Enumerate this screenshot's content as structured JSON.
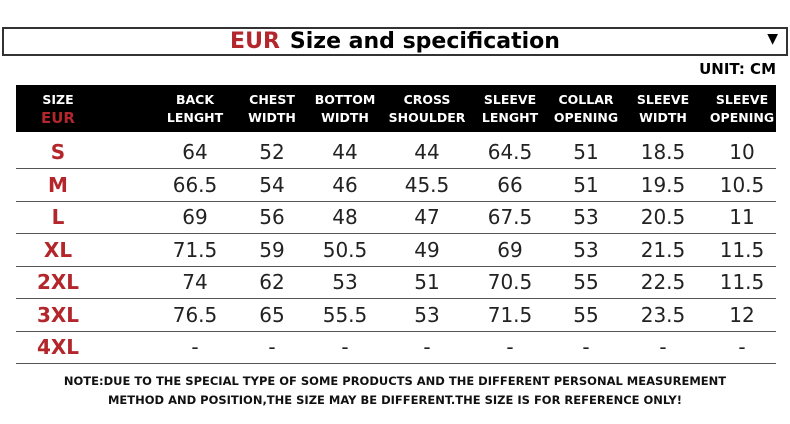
{
  "title": {
    "prefix": "EUR",
    "text": "Size and specification",
    "dropdown_icon": "triangle-down-icon"
  },
  "unit": "UNIT: CM",
  "accent_color": "#b3262b",
  "headers": [
    [
      "SIZE",
      "EUR"
    ],
    [
      "BACK",
      "LENGHT"
    ],
    [
      "CHEST",
      "WIDTH"
    ],
    [
      "BOTTOM",
      "WIDTH"
    ],
    [
      "CROSS",
      "SHOULDER"
    ],
    [
      "SLEEVE",
      "LENGHT"
    ],
    [
      "COLLAR",
      "OPENING"
    ],
    [
      "SLEEVE",
      "WIDTH"
    ],
    [
      "SLEEVE",
      "OPENING"
    ]
  ],
  "rows": [
    [
      "S",
      "64",
      "52",
      "44",
      "44",
      "64.5",
      "51",
      "18.5",
      "10"
    ],
    [
      "M",
      "66.5",
      "54",
      "46",
      "45.5",
      "66",
      "51",
      "19.5",
      "10.5"
    ],
    [
      "L",
      "69",
      "56",
      "48",
      "47",
      "67.5",
      "53",
      "20.5",
      "11"
    ],
    [
      "XL",
      "71.5",
      "59",
      "50.5",
      "49",
      "69",
      "53",
      "21.5",
      "11.5"
    ],
    [
      "2XL",
      "74",
      "62",
      "53",
      "51",
      "70.5",
      "55",
      "22.5",
      "11.5"
    ],
    [
      "3XL",
      "76.5",
      "65",
      "55.5",
      "53",
      "71.5",
      "55",
      "23.5",
      "12"
    ],
    [
      "4XL",
      "-",
      "-",
      "-",
      "-",
      "-",
      "-",
      "-",
      "-"
    ]
  ],
  "note": [
    "NOTE:DUE TO THE SPECIAL TYPE OF SOME PRODUCTS AND THE DIFFERENT PERSONAL MEASUREMENT",
    "METHOD AND POSITION,THE SIZE MAY BE DIFFERENT.THE SIZE IS FOR REFERENCE ONLY!"
  ]
}
